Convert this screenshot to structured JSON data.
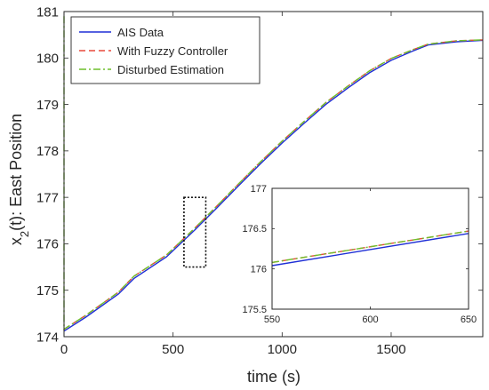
{
  "chart_data": [
    {
      "type": "line",
      "xlabel": "time (s)",
      "ylabel_main": "x",
      "ylabel_sub": "2",
      "ylabel_rest": "(t): East Position",
      "xlim": [
        0,
        1920
      ],
      "ylim": [
        174,
        181
      ],
      "xticks": [
        0,
        500,
        1000,
        1500
      ],
      "xtick_labels": [
        "0",
        "500",
        "1000",
        "1500"
      ],
      "yticks": [
        174,
        175,
        176,
        177,
        178,
        179,
        180,
        181
      ],
      "ytick_labels": [
        "174",
        "175",
        "176",
        "177",
        "178",
        "179",
        "180",
        "181"
      ],
      "legend_position": "top-left",
      "series": [
        {
          "name": "AIS Data",
          "color": "#1f2fd6",
          "style": "solid",
          "x": [
            0,
            100,
            250,
            320,
            470,
            600,
            700,
            800,
            900,
            1000,
            1100,
            1200,
            1300,
            1400,
            1500,
            1600,
            1670,
            1800,
            1920
          ],
          "y": [
            174.12,
            174.42,
            174.92,
            175.25,
            175.72,
            176.3,
            176.77,
            177.25,
            177.72,
            178.17,
            178.59,
            179.0,
            179.35,
            179.68,
            179.95,
            180.15,
            180.28,
            180.35,
            180.38
          ]
        },
        {
          "name": "With Fuzzy Controller",
          "color": "#e8483c",
          "style": "dashed",
          "x": [
            0,
            100,
            250,
            320,
            470,
            600,
            700,
            800,
            900,
            1000,
            1100,
            1200,
            1300,
            1400,
            1500,
            1600,
            1670,
            1800,
            1920
          ],
          "y": [
            174.16,
            174.46,
            174.96,
            175.3,
            175.76,
            176.34,
            176.81,
            177.29,
            177.76,
            178.21,
            178.63,
            179.04,
            179.39,
            179.72,
            179.99,
            180.18,
            180.3,
            180.37,
            180.39
          ]
        },
        {
          "name": "Disturbed Estimation",
          "color": "#6fbf2c",
          "style": "dashdot",
          "x": [
            0,
            0,
            100,
            250,
            320,
            470,
            600,
            700,
            800,
            900,
            1000,
            1100,
            1200,
            1300,
            1400,
            1500,
            1600,
            1670,
            1800,
            1920
          ],
          "y": [
            180.9,
            174.16,
            174.46,
            174.96,
            175.3,
            175.76,
            176.34,
            176.81,
            177.29,
            177.76,
            178.21,
            178.63,
            179.04,
            179.39,
            179.72,
            179.99,
            180.18,
            180.3,
            180.37,
            180.39
          ]
        }
      ],
      "zoom_box": {
        "x": [
          550,
          650
        ],
        "y": [
          175.5,
          177
        ]
      }
    },
    {
      "type": "line",
      "xlim": [
        550,
        650
      ],
      "ylim": [
        175.5,
        177
      ],
      "xticks": [
        550,
        600,
        650
      ],
      "xtick_labels": [
        "550",
        "600",
        "650"
      ],
      "yticks": [
        175.5,
        176,
        176.5,
        177
      ],
      "ytick_labels": [
        "175.5",
        "176",
        "176.5",
        "177"
      ],
      "series": [
        {
          "name": "AIS Data",
          "color": "#1f2fd6",
          "style": "solid",
          "x": [
            550,
            650
          ],
          "y": [
            176.04,
            176.44
          ]
        },
        {
          "name": "With Fuzzy Controller",
          "color": "#e8483c",
          "style": "dashed",
          "x": [
            550,
            650
          ],
          "y": [
            176.08,
            176.47
          ]
        },
        {
          "name": "Disturbed Estimation",
          "color": "#6fbf2c",
          "style": "dashdot",
          "x": [
            550,
            650
          ],
          "y": [
            176.08,
            176.47
          ]
        }
      ]
    }
  ]
}
